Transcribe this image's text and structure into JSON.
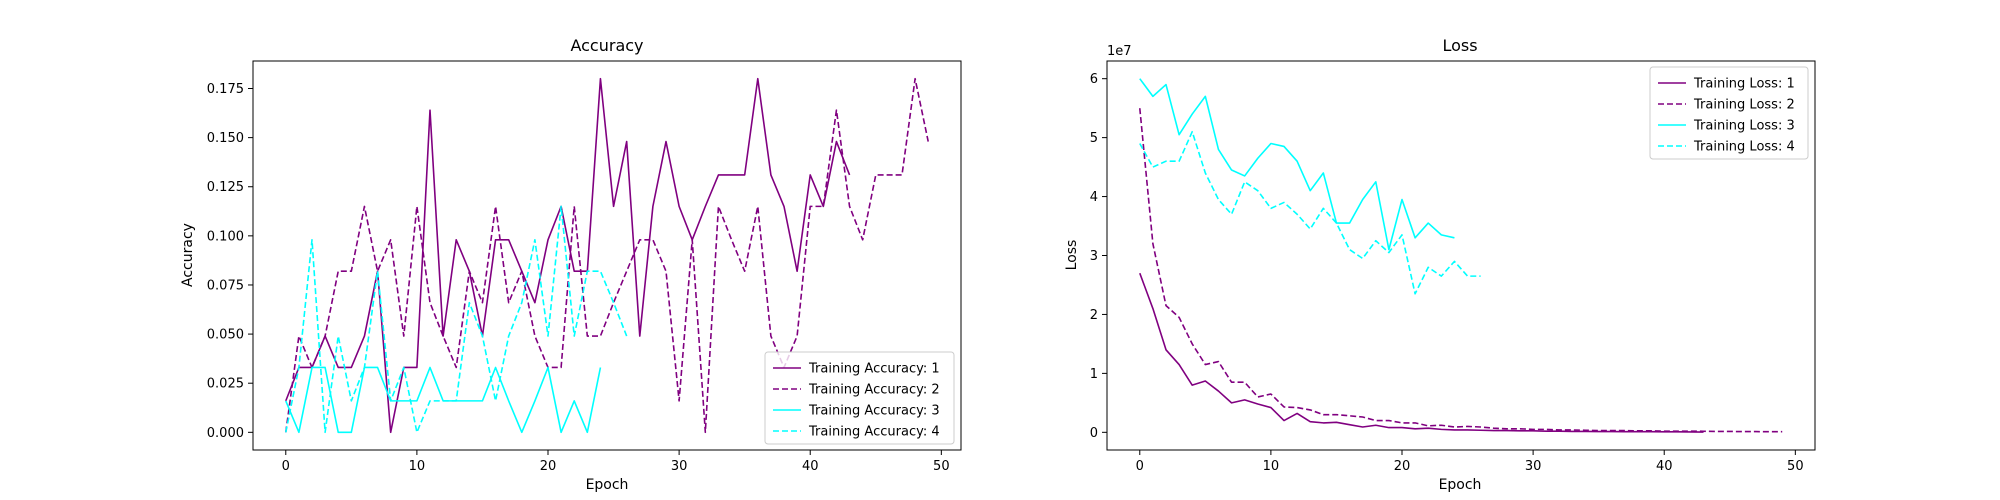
{
  "chart_data": [
    {
      "type": "line",
      "title": "Accuracy",
      "xlabel": "Epoch",
      "ylabel": "Accuracy",
      "xlim": [
        -2.5,
        51.5
      ],
      "ylim": [
        -0.009,
        0.189
      ],
      "xticks": [
        0,
        10,
        20,
        30,
        40,
        50
      ],
      "xtick_labels": [
        "0",
        "10",
        "20",
        "30",
        "40",
        "50"
      ],
      "yticks": [
        0,
        0.025,
        0.05,
        0.075,
        0.1,
        0.125,
        0.15,
        0.175
      ],
      "ytick_labels": [
        "0.000",
        "0.025",
        "0.050",
        "0.075",
        "0.100",
        "0.125",
        "0.150",
        "0.175"
      ],
      "grid": false,
      "legend": "lower right",
      "series": [
        {
          "name": "Training Accuracy: 1",
          "color": "#800080",
          "dash": "solid",
          "values": [
            0.016,
            0.033,
            0.033,
            0.049,
            0.033,
            0.033,
            0.049,
            0.082,
            0.0,
            0.033,
            0.033,
            0.164,
            0.049,
            0.098,
            0.082,
            0.049,
            0.098,
            0.098,
            0.082,
            0.066,
            0.098,
            0.115,
            0.082,
            0.082,
            0.18,
            0.115,
            0.148,
            0.049,
            0.115,
            0.148,
            0.115,
            0.098,
            0.115,
            0.131,
            0.131,
            0.131,
            0.18,
            0.131,
            0.115,
            0.082,
            0.131,
            0.115,
            0.148,
            0.131
          ]
        },
        {
          "name": "Training Accuracy: 2",
          "color": "#800080",
          "dash": "dashed",
          "values": [
            0.0,
            0.049,
            0.033,
            0.049,
            0.082,
            0.082,
            0.115,
            0.082,
            0.098,
            0.049,
            0.115,
            0.066,
            0.049,
            0.033,
            0.082,
            0.066,
            0.115,
            0.066,
            0.082,
            0.049,
            0.033,
            0.033,
            0.115,
            0.049,
            0.049,
            0.066,
            0.082,
            0.098,
            0.098,
            0.082,
            0.016,
            0.098,
            0.0,
            0.115,
            0.098,
            0.082,
            0.115,
            0.049,
            0.033,
            0.049,
            0.115,
            0.115,
            0.164,
            0.115,
            0.098,
            0.131,
            0.131,
            0.131,
            0.18,
            0.148
          ]
        },
        {
          "name": "Training Accuracy: 3",
          "color": "#00ffff",
          "dash": "solid",
          "values": [
            0.016,
            0.0,
            0.033,
            0.033,
            0.0,
            0.0,
            0.033,
            0.033,
            0.016,
            0.016,
            0.016,
            0.033,
            0.016,
            0.016,
            0.016,
            0.016,
            0.033,
            0.016,
            0.0,
            0.016,
            0.033,
            0.0,
            0.016,
            0.0,
            0.033
          ]
        },
        {
          "name": "Training Accuracy: 4",
          "color": "#00ffff",
          "dash": "dashed",
          "values": [
            0.0,
            0.033,
            0.098,
            0.0,
            0.049,
            0.016,
            0.033,
            0.082,
            0.016,
            0.033,
            0.0,
            0.016,
            0.016,
            0.016,
            0.066,
            0.049,
            0.016,
            0.049,
            0.066,
            0.098,
            0.049,
            0.115,
            0.049,
            0.082,
            0.082,
            0.066,
            0.049
          ]
        }
      ]
    },
    {
      "type": "line",
      "title": "Loss",
      "xlabel": "Epoch",
      "ylabel": "Loss",
      "offset_text": "1e7",
      "xlim": [
        -2.5,
        51.5
      ],
      "ylim": [
        -3.0,
        63.0
      ],
      "xticks": [
        0,
        10,
        20,
        30,
        40,
        50
      ],
      "xtick_labels": [
        "0",
        "10",
        "20",
        "30",
        "40",
        "50"
      ],
      "yticks": [
        0,
        10,
        20,
        30,
        40,
        50,
        60
      ],
      "ytick_labels": [
        "0",
        "1",
        "2",
        "3",
        "4",
        "5",
        "6"
      ],
      "grid": false,
      "legend": "upper right",
      "series": [
        {
          "name": "Training Loss: 1",
          "color": "#800080",
          "dash": "solid",
          "values": [
            27.0,
            21.0,
            14.0,
            11.5,
            8.0,
            8.7,
            7.0,
            5.0,
            5.5,
            4.8,
            4.2,
            2.0,
            3.2,
            1.8,
            1.6,
            1.7,
            1.3,
            0.9,
            1.2,
            0.8,
            0.8,
            0.6,
            0.7,
            0.5,
            0.4,
            0.4,
            0.35,
            0.3,
            0.3,
            0.25,
            0.25,
            0.2,
            0.2,
            0.15,
            0.15,
            0.12,
            0.12,
            0.1,
            0.1,
            0.1,
            0.08,
            0.08,
            0.06,
            0.05
          ]
        },
        {
          "name": "Training Loss: 2",
          "color": "#800080",
          "dash": "dashed",
          "values": [
            55.0,
            32.0,
            21.5,
            19.5,
            15.0,
            11.5,
            12.0,
            8.5,
            8.5,
            6.0,
            6.5,
            4.3,
            4.2,
            3.8,
            3.0,
            3.0,
            2.8,
            2.6,
            2.0,
            2.0,
            1.6,
            1.6,
            1.1,
            1.2,
            0.9,
            1.0,
            0.9,
            0.7,
            0.6,
            0.6,
            0.5,
            0.5,
            0.4,
            0.4,
            0.35,
            0.3,
            0.3,
            0.3,
            0.25,
            0.25,
            0.2,
            0.2,
            0.2,
            0.18,
            0.15,
            0.15,
            0.12,
            0.12,
            0.1,
            0.1
          ]
        },
        {
          "name": "Training Loss: 3",
          "color": "#00ffff",
          "dash": "solid",
          "values": [
            60.0,
            57.0,
            59.0,
            50.5,
            54.0,
            57.0,
            48.0,
            44.5,
            43.5,
            46.5,
            49.0,
            48.5,
            46.0,
            41.0,
            44.0,
            35.5,
            35.5,
            39.5,
            42.5,
            31.0,
            39.5,
            33.0,
            35.5,
            33.5,
            33.0
          ]
        },
        {
          "name": "Training Loss: 4",
          "color": "#00ffff",
          "dash": "dashed",
          "values": [
            49.0,
            45.0,
            46.0,
            46.0,
            51.0,
            44.0,
            39.5,
            37.0,
            42.5,
            41.0,
            38.0,
            39.0,
            37.0,
            34.5,
            38.0,
            35.5,
            31.0,
            29.5,
            32.5,
            30.5,
            33.5,
            23.5,
            28.0,
            26.5,
            29.0,
            26.5,
            26.5
          ]
        }
      ]
    }
  ]
}
